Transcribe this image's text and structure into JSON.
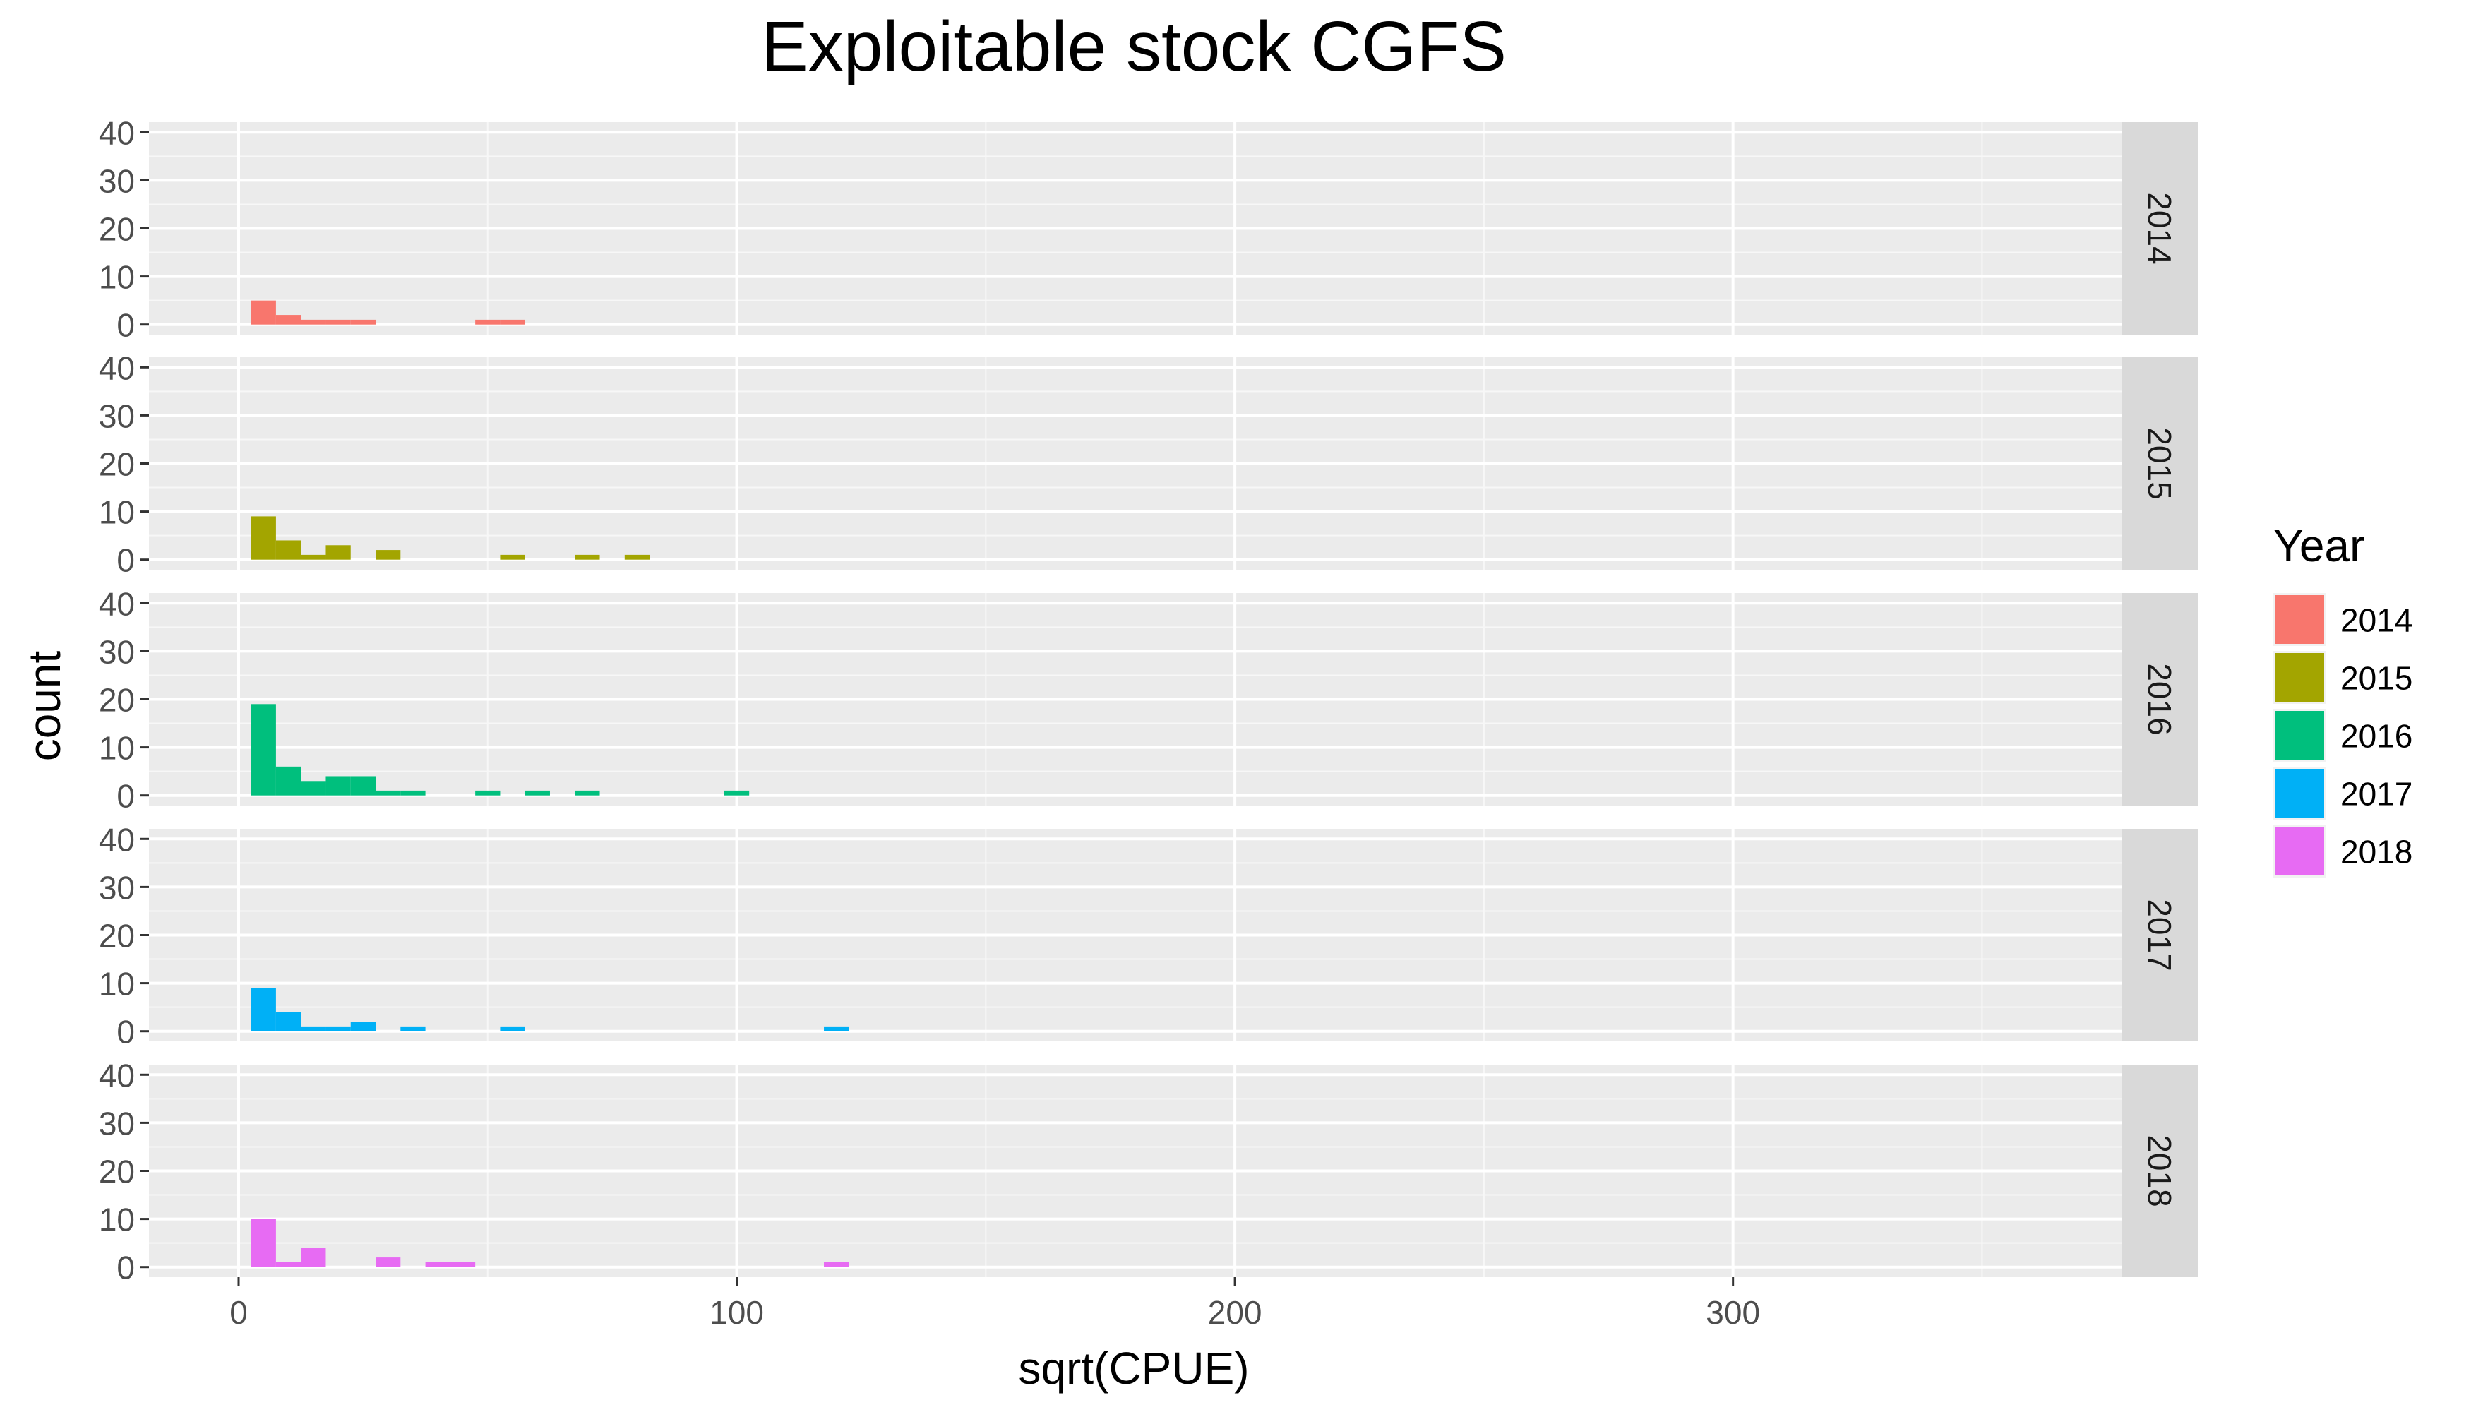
{
  "chart_data": {
    "type": "bar",
    "subtype": "faceted-histogram",
    "title": "Exploitable stock CGFS",
    "xlabel": "sqrt(CPUE)",
    "ylabel": "count",
    "xlim": [
      -18,
      378
    ],
    "ylim": [
      -2.1,
      42.1
    ],
    "x_ticks": [
      0,
      100,
      200,
      300
    ],
    "x_tick_labels": [
      "0",
      "100",
      "200",
      "300"
    ],
    "y_ticks": [
      0,
      10,
      20,
      30,
      40
    ],
    "y_tick_labels": [
      "0",
      "10",
      "20",
      "30",
      "40"
    ],
    "grid": true,
    "legend": {
      "title": "Year",
      "position": "right"
    },
    "bin_width": 5,
    "facet_label_position": "right",
    "facets": [
      {
        "label": "2014",
        "color": "#F8766D",
        "bins": [
          {
            "x0": 2.5,
            "x1": 7.5,
            "count": 5
          },
          {
            "x0": 7.5,
            "x1": 12.5,
            "count": 2
          },
          {
            "x0": 12.5,
            "x1": 17.5,
            "count": 1
          },
          {
            "x0": 17.5,
            "x1": 22.5,
            "count": 1
          },
          {
            "x0": 22.5,
            "x1": 27.5,
            "count": 1
          },
          {
            "x0": 47.5,
            "x1": 52.5,
            "count": 1
          },
          {
            "x0": 52.5,
            "x1": 57.5,
            "count": 1
          }
        ]
      },
      {
        "label": "2015",
        "color": "#A3A500",
        "bins": [
          {
            "x0": 2.5,
            "x1": 7.5,
            "count": 9
          },
          {
            "x0": 7.5,
            "x1": 12.5,
            "count": 4
          },
          {
            "x0": 12.5,
            "x1": 17.5,
            "count": 1
          },
          {
            "x0": 17.5,
            "x1": 22.5,
            "count": 3
          },
          {
            "x0": 27.5,
            "x1": 32.5,
            "count": 2
          },
          {
            "x0": 52.5,
            "x1": 57.5,
            "count": 1
          },
          {
            "x0": 67.5,
            "x1": 72.5,
            "count": 1
          },
          {
            "x0": 77.5,
            "x1": 82.5,
            "count": 1
          }
        ]
      },
      {
        "label": "2016",
        "color": "#00BF7D",
        "bins": [
          {
            "x0": 2.5,
            "x1": 7.5,
            "count": 19
          },
          {
            "x0": 7.5,
            "x1": 12.5,
            "count": 6
          },
          {
            "x0": 12.5,
            "x1": 17.5,
            "count": 3
          },
          {
            "x0": 17.5,
            "x1": 22.5,
            "count": 4
          },
          {
            "x0": 22.5,
            "x1": 27.5,
            "count": 4
          },
          {
            "x0": 27.5,
            "x1": 32.5,
            "count": 1
          },
          {
            "x0": 32.5,
            "x1": 37.5,
            "count": 1
          },
          {
            "x0": 47.5,
            "x1": 52.5,
            "count": 1
          },
          {
            "x0": 57.5,
            "x1": 62.5,
            "count": 1
          },
          {
            "x0": 67.5,
            "x1": 72.5,
            "count": 1
          },
          {
            "x0": 97.5,
            "x1": 102.5,
            "count": 1
          }
        ]
      },
      {
        "label": "2017",
        "color": "#00B0F6",
        "bins": [
          {
            "x0": 2.5,
            "x1": 7.5,
            "count": 9
          },
          {
            "x0": 7.5,
            "x1": 12.5,
            "count": 4
          },
          {
            "x0": 12.5,
            "x1": 17.5,
            "count": 1
          },
          {
            "x0": 17.5,
            "x1": 22.5,
            "count": 1
          },
          {
            "x0": 22.5,
            "x1": 27.5,
            "count": 2
          },
          {
            "x0": 32.5,
            "x1": 37.5,
            "count": 1
          },
          {
            "x0": 52.5,
            "x1": 57.5,
            "count": 1
          },
          {
            "x0": 117.5,
            "x1": 122.5,
            "count": 1
          }
        ]
      },
      {
        "label": "2018",
        "color": "#E76BF3",
        "bins": [
          {
            "x0": 2.5,
            "x1": 7.5,
            "count": 10
          },
          {
            "x0": 7.5,
            "x1": 12.5,
            "count": 1
          },
          {
            "x0": 12.5,
            "x1": 17.5,
            "count": 4
          },
          {
            "x0": 27.5,
            "x1": 32.5,
            "count": 2
          },
          {
            "x0": 37.5,
            "x1": 42.5,
            "count": 1
          },
          {
            "x0": 42.5,
            "x1": 47.5,
            "count": 1
          },
          {
            "x0": 117.5,
            "x1": 122.5,
            "count": 1
          }
        ]
      }
    ],
    "series": [
      {
        "name": "2014",
        "color": "#F8766D"
      },
      {
        "name": "2015",
        "color": "#A3A500"
      },
      {
        "name": "2016",
        "color": "#00BF7D"
      },
      {
        "name": "2017",
        "color": "#00B0F6"
      },
      {
        "name": "2018",
        "color": "#E76BF3"
      }
    ]
  }
}
